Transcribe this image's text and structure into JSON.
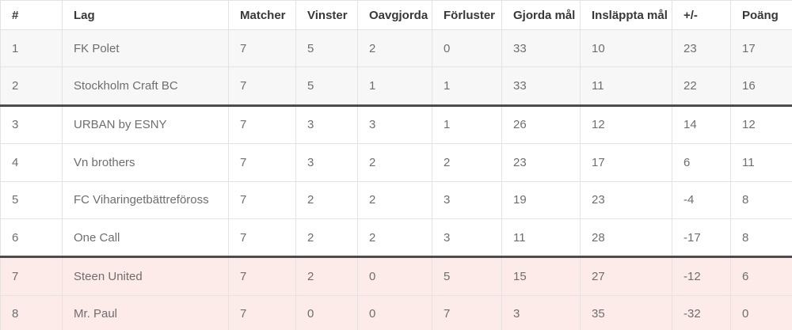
{
  "table": {
    "columns": [
      {
        "key": "position",
        "label": "#"
      },
      {
        "key": "team",
        "label": "Lag"
      },
      {
        "key": "matches",
        "label": "Matcher"
      },
      {
        "key": "wins",
        "label": "Vinster"
      },
      {
        "key": "draws",
        "label": "Oavgjorda"
      },
      {
        "key": "losses",
        "label": "Förluster"
      },
      {
        "key": "goals_for",
        "label": "Gjorda mål"
      },
      {
        "key": "goals_against",
        "label": "Insläppta mål"
      },
      {
        "key": "goal_diff",
        "label": "+/-"
      },
      {
        "key": "points",
        "label": "Poäng"
      }
    ],
    "rows": [
      {
        "zone": "top",
        "divider_above": false,
        "cells": [
          "1",
          "FK Polet",
          "7",
          "5",
          "2",
          "0",
          "33",
          "10",
          "23",
          "17"
        ]
      },
      {
        "zone": "top",
        "divider_above": false,
        "cells": [
          "2",
          "Stockholm Craft BC",
          "7",
          "5",
          "1",
          "1",
          "33",
          "11",
          "22",
          "16"
        ]
      },
      {
        "zone": "mid",
        "divider_above": true,
        "cells": [
          "3",
          "URBAN by ESNY",
          "7",
          "3",
          "3",
          "1",
          "26",
          "12",
          "14",
          "12"
        ]
      },
      {
        "zone": "mid",
        "divider_above": false,
        "cells": [
          "4",
          "Vn brothers",
          "7",
          "3",
          "2",
          "2",
          "23",
          "17",
          "6",
          "11"
        ]
      },
      {
        "zone": "mid",
        "divider_above": false,
        "cells": [
          "5",
          "FC Viharingetbättreföross",
          "7",
          "2",
          "2",
          "3",
          "19",
          "23",
          "-4",
          "8"
        ]
      },
      {
        "zone": "mid",
        "divider_above": false,
        "cells": [
          "6",
          "One Call",
          "7",
          "2",
          "2",
          "3",
          "11",
          "28",
          "-17",
          "8"
        ]
      },
      {
        "zone": "bottom",
        "divider_above": true,
        "cells": [
          "7",
          "Steen United",
          "7",
          "2",
          "0",
          "5",
          "15",
          "27",
          "-12",
          "6"
        ]
      },
      {
        "zone": "bottom",
        "divider_above": false,
        "cells": [
          "8",
          "Mr. Paul",
          "7",
          "0",
          "0",
          "7",
          "3",
          "35",
          "-32",
          "0"
        ]
      }
    ],
    "colors": {
      "header_text": "#383838",
      "cell_text": "#6e6e6e",
      "grid_border": "#e3e3e3",
      "divider_line": "#4c4c4c",
      "promotion_row_bg": "#f7f7f7",
      "relegation_row_bg": "#fcebe8",
      "row_bg": "#ffffff"
    }
  }
}
